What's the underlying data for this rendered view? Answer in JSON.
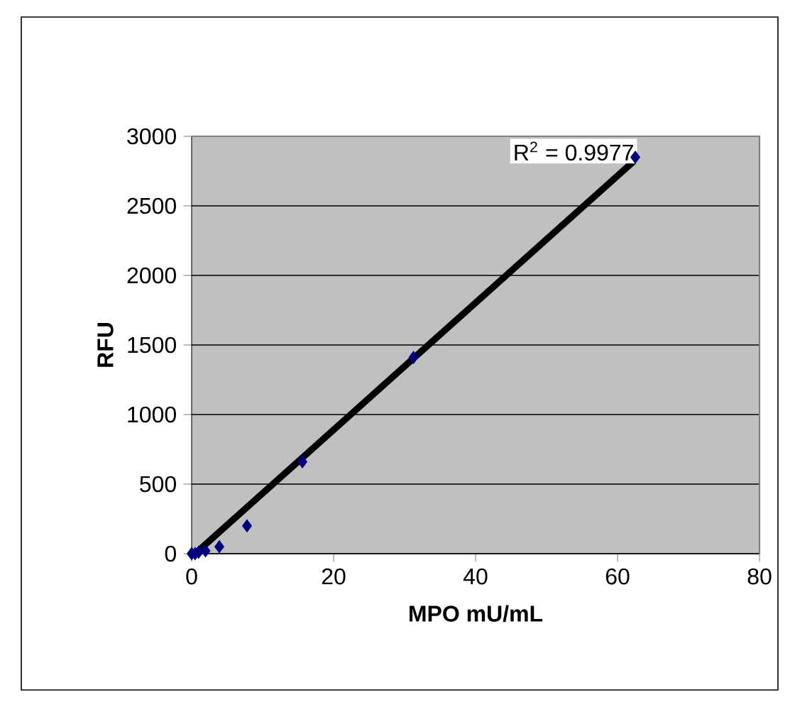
{
  "chart_data": {
    "type": "scatter",
    "xlabel": "MPO mU/mL",
    "ylabel": "RFU",
    "xlim": [
      0,
      80
    ],
    "xticks": [
      0,
      20,
      40,
      60,
      80
    ],
    "ylim": [
      0,
      3000
    ],
    "yticks": [
      0,
      500,
      1000,
      1500,
      2000,
      2500,
      3000
    ],
    "grid": "y",
    "annotations": [
      "R$^{2}$ = 0.9977"
    ],
    "series": [
      {
        "color": "#000080",
        "marker": "diamond",
        "x": [
          0,
          0.49,
          0.98,
          1.95,
          3.9,
          7.8,
          15.6,
          31.25,
          62.5
        ],
        "values": [
          0,
          0,
          10,
          20,
          50,
          200,
          660,
          1410,
          2850
        ]
      },
      {
        "type": "line",
        "marker": "none",
        "color": "#000000",
        "x": [
          0.49,
          62.5
        ],
        "values": [
          0,
          2830
        ]
      }
    ]
  }
}
